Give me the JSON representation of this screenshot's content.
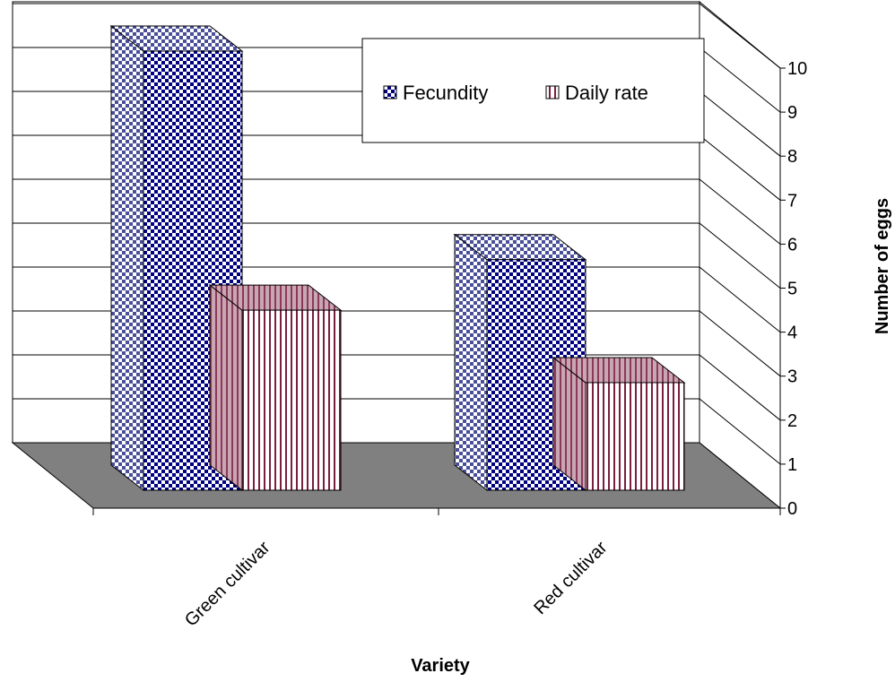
{
  "chart_data": {
    "type": "bar",
    "title": "",
    "xlabel": "Variety",
    "ylabel": "Number of eggs",
    "categories": [
      "Green cultivar",
      "Red cultivar"
    ],
    "series": [
      {
        "name": "Fecundity",
        "values": [
          10,
          5.25
        ],
        "pattern": "checker",
        "color": "#000080"
      },
      {
        "name": "Daily rate",
        "values": [
          4.1,
          2.45
        ],
        "pattern": "vertical-stripes",
        "color": "#7a1f3d"
      }
    ],
    "ylim": [
      0,
      10
    ],
    "yticks": [
      "0",
      "1",
      "2",
      "3",
      "4",
      "5",
      "6",
      "7",
      "8",
      "9",
      "10"
    ],
    "grid": true,
    "legend_position": "top-right",
    "floor_color": "#808080"
  }
}
